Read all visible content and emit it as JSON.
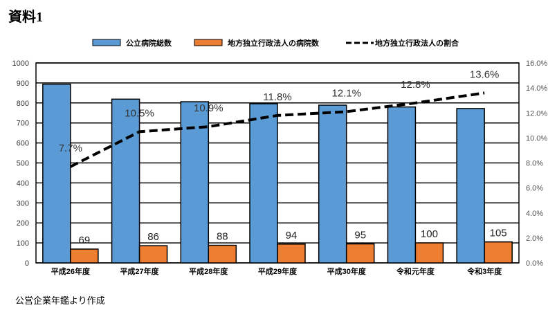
{
  "title": "資料1",
  "source": "公営企業年鑑より作成",
  "chart_data": {
    "type": "bar",
    "categories": [
      "平成26年度",
      "平成27年度",
      "平成28年度",
      "平成29年度",
      "平成30年度",
      "令和元年度",
      "令和3年度"
    ],
    "series": [
      {
        "name": "公立病院総数",
        "type": "bar",
        "axis": "left",
        "color": "#5b9bd5",
        "values": [
          894,
          819,
          806,
          796,
          789,
          780,
          772
        ]
      },
      {
        "name": "地方独立行政法人の病院数",
        "type": "bar",
        "axis": "left",
        "color": "#ed7d31",
        "values": [
          69,
          86,
          88,
          94,
          95,
          100,
          105
        ],
        "labels": [
          "69",
          "86",
          "88",
          "94",
          "95",
          "100",
          "105"
        ]
      },
      {
        "name": "地方独立行政法人の割合",
        "type": "line",
        "axis": "right",
        "color": "#000000",
        "values": [
          7.7,
          10.5,
          10.9,
          11.8,
          12.1,
          12.8,
          13.6
        ],
        "labels": [
          "7.7%",
          "10.5%",
          "10.9%",
          "11.8%",
          "12.1%",
          "12.8%",
          "13.6%"
        ]
      }
    ],
    "y_left": {
      "min": 0,
      "max": 1000,
      "step": 100,
      "ticks": [
        "0",
        "100",
        "200",
        "300",
        "400",
        "500",
        "600",
        "700",
        "800",
        "900",
        "1000"
      ]
    },
    "y_right": {
      "min": 0,
      "max": 16,
      "step": 2,
      "ticks": [
        "0.0%",
        "2.0%",
        "4.0%",
        "6.0%",
        "8.0%",
        "10.0%",
        "12.0%",
        "14.0%",
        "16.0%"
      ]
    },
    "grid": true,
    "legend": "top"
  }
}
